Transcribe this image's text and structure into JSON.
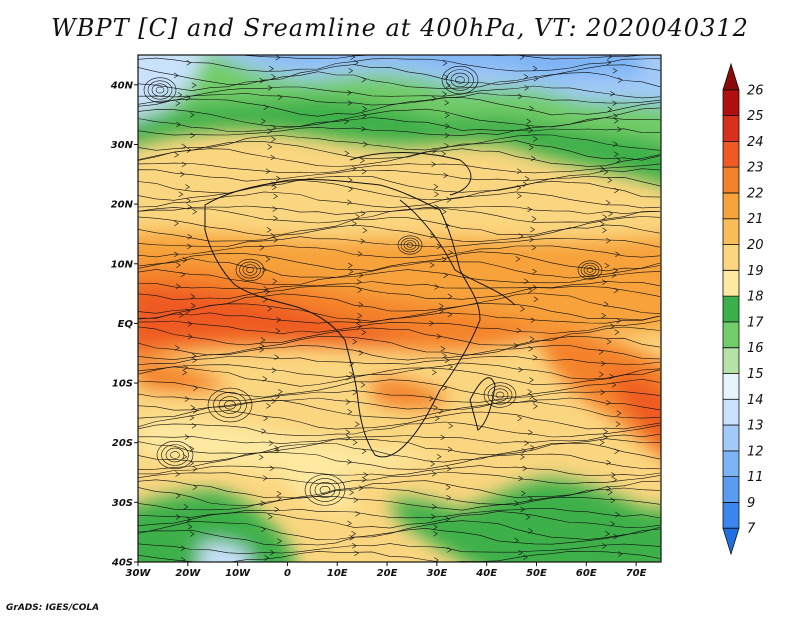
{
  "title": "WBPT [C] and Sreamline at 400hPa, VT: 2020040312",
  "credit": "GrADS: IGES/COLA",
  "map": {
    "lon_range": [
      -30,
      75
    ],
    "lat_range": [
      -40,
      45
    ],
    "lon_ticks": [
      {
        "value": -30,
        "label": "30W"
      },
      {
        "value": -20,
        "label": "20W"
      },
      {
        "value": -10,
        "label": "10W"
      },
      {
        "value": 0,
        "label": "0"
      },
      {
        "value": 10,
        "label": "10E"
      },
      {
        "value": 20,
        "label": "20E"
      },
      {
        "value": 30,
        "label": "30E"
      },
      {
        "value": 40,
        "label": "40E"
      },
      {
        "value": 50,
        "label": "50E"
      },
      {
        "value": 60,
        "label": "60E"
      },
      {
        "value": 70,
        "label": "70E"
      }
    ],
    "lat_ticks": [
      {
        "value": 40,
        "label": "40N"
      },
      {
        "value": 30,
        "label": "30N"
      },
      {
        "value": 20,
        "label": "20N"
      },
      {
        "value": 10,
        "label": "10N"
      },
      {
        "value": 0,
        "label": "EQ"
      },
      {
        "value": -10,
        "label": "10S"
      },
      {
        "value": -20,
        "label": "20S"
      },
      {
        "value": -30,
        "label": "30S"
      },
      {
        "value": -40,
        "label": "40S"
      }
    ]
  },
  "colorbar": {
    "levels": [
      "7",
      "9",
      "11",
      "12",
      "13",
      "14",
      "15",
      "16",
      "17",
      "18",
      "19",
      "20",
      "21",
      "22",
      "23",
      "24",
      "25",
      "26"
    ],
    "colors": [
      "#1e6fe0",
      "#3a85ee",
      "#5a9cf2",
      "#7db4f5",
      "#a3cbf8",
      "#c8e2fb",
      "#e6f5fb",
      "#b4e3a8",
      "#72cc68",
      "#3cb04a",
      "#fde9a0",
      "#fbd680",
      "#f9be5a",
      "#f7a23a",
      "#f4822a",
      "#ee5a22",
      "#d8301a",
      "#b01010",
      "#8a0a0a"
    ]
  }
}
